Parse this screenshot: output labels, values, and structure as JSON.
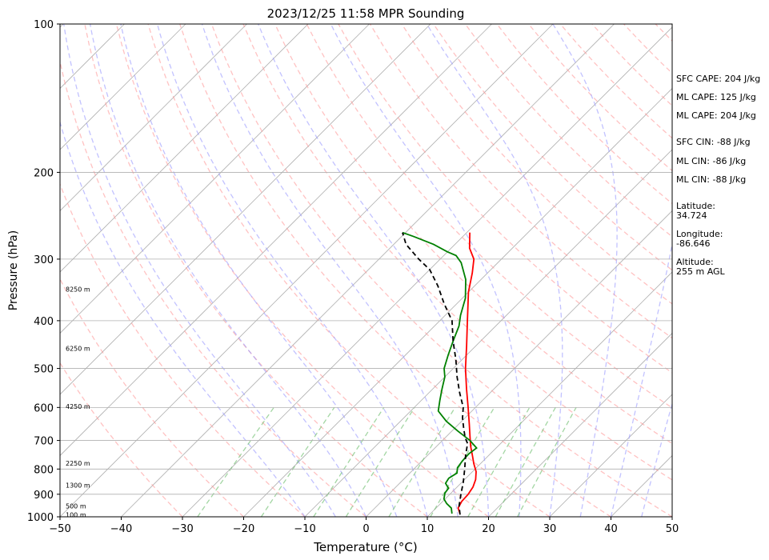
{
  "chart_data": {
    "type": "line",
    "title": "2023/12/25 11:58 MPR Sounding",
    "xlabel": "Temperature (°C)",
    "ylabel": "Pressure (hPa)",
    "xlim": [
      -50,
      50
    ],
    "ylim": [
      1000,
      100
    ],
    "y_scale": "log",
    "x_ticks": [
      "−50",
      "−40",
      "−30",
      "−20",
      "−10",
      "0",
      "10",
      "20",
      "30",
      "40",
      "50"
    ],
    "y_ticks": [
      {
        "p": 100,
        "label": "100"
      },
      {
        "p": 200,
        "label": "200"
      },
      {
        "p": 300,
        "label": "300"
      },
      {
        "p": 400,
        "label": "400"
      },
      {
        "p": 500,
        "label": "500"
      },
      {
        "p": 600,
        "label": "600"
      },
      {
        "p": 700,
        "label": "700"
      },
      {
        "p": 800,
        "label": "800"
      },
      {
        "p": 900,
        "label": "900"
      },
      {
        "p": 1000,
        "label": "1000"
      }
    ],
    "height_labels": [
      {
        "p": 345,
        "label": "8250 m"
      },
      {
        "p": 455,
        "label": "6250 m"
      },
      {
        "p": 597,
        "label": "4250 m"
      },
      {
        "p": 778,
        "label": "2250 m"
      },
      {
        "p": 862,
        "label": "1300 m"
      },
      {
        "p": 950,
        "label": "500 m"
      },
      {
        "p": 990,
        "label": "100 m"
      }
    ],
    "series": [
      {
        "name": "",
        "color": "#ff0000",
        "style": "solid",
        "points": [
          [
            14.8,
            985
          ],
          [
            13.6,
            960
          ],
          [
            13.1,
            930
          ],
          [
            13.0,
            900
          ],
          [
            12.6,
            870
          ],
          [
            11.8,
            840
          ],
          [
            10.6,
            810
          ],
          [
            8.9,
            780
          ],
          [
            7.3,
            750
          ],
          [
            5.6,
            720
          ],
          [
            4.0,
            690
          ],
          [
            1.8,
            650
          ],
          [
            -1.2,
            600
          ],
          [
            -4.5,
            550
          ],
          [
            -8.0,
            500
          ],
          [
            -11.5,
            450
          ],
          [
            -15.5,
            400
          ],
          [
            -20.0,
            350
          ],
          [
            -22.5,
            320
          ],
          [
            -24.5,
            300
          ],
          [
            -27.0,
            285
          ],
          [
            -29.5,
            265
          ]
        ]
      },
      {
        "name": "",
        "color": "#008000",
        "style": "solid",
        "points": [
          [
            13.5,
            985
          ],
          [
            12.5,
            960
          ],
          [
            11.0,
            940
          ],
          [
            9.8,
            920
          ],
          [
            9.0,
            895
          ],
          [
            8.8,
            875
          ],
          [
            7.5,
            855
          ],
          [
            7.2,
            835
          ],
          [
            7.7,
            815
          ],
          [
            6.9,
            795
          ],
          [
            6.6,
            770
          ],
          [
            6.5,
            745
          ],
          [
            6.8,
            725
          ],
          [
            4.5,
            700
          ],
          [
            1.0,
            670
          ],
          [
            -2.5,
            640
          ],
          [
            -5.5,
            610
          ],
          [
            -7.0,
            580
          ],
          [
            -8.5,
            550
          ],
          [
            -10.0,
            520
          ],
          [
            -11.5,
            500
          ],
          [
            -13.0,
            470
          ],
          [
            -14.5,
            440
          ],
          [
            -16.0,
            410
          ],
          [
            -17.5,
            390
          ],
          [
            -19.5,
            360
          ],
          [
            -22.5,
            330
          ],
          [
            -26.0,
            305
          ],
          [
            -28.0,
            295
          ],
          [
            -30.0,
            290
          ],
          [
            -33.5,
            280
          ],
          [
            -38.0,
            270
          ],
          [
            -40.5,
            265
          ]
        ]
      },
      {
        "name": "",
        "color": "#000000",
        "style": "dashed",
        "points": [
          [
            15.0,
            990
          ],
          [
            13.4,
            950
          ],
          [
            11.8,
            900
          ],
          [
            10.2,
            850
          ],
          [
            8.3,
            800
          ],
          [
            6.2,
            750
          ],
          [
            4.6,
            710
          ],
          [
            3.2,
            690
          ],
          [
            1.4,
            660
          ],
          [
            -0.4,
            630
          ],
          [
            -2.0,
            600
          ],
          [
            -5.0,
            560
          ],
          [
            -8.0,
            520
          ],
          [
            -11.0,
            480
          ],
          [
            -14.5,
            440
          ],
          [
            -18.0,
            400
          ],
          [
            -22.0,
            370
          ],
          [
            -26.0,
            340
          ],
          [
            -30.0,
            315
          ],
          [
            -33.5,
            300
          ],
          [
            -38.0,
            280
          ],
          [
            -40.5,
            265
          ]
        ]
      }
    ]
  },
  "side_panel": {
    "sfc_cape": "SFC CAPE: 204 J/kg",
    "ml_cape_1": "ML CAPE: 125 J/kg",
    "ml_cape_2": "ML CAPE: 204 J/kg",
    "sfc_cin": "SFC CIN: -88 J/kg",
    "ml_cin_1": "ML CIN: -86 J/kg",
    "ml_cin_2": "ML CIN: -88 J/kg",
    "latitude_label": "Latitude:",
    "latitude_value": "34.724",
    "longitude_label": "Longitude:",
    "longitude_value": "-86.646",
    "altitude_label": "Altitude:",
    "altitude_value": "255 m AGL"
  },
  "colors": {
    "isotherm": "#b0b0b0",
    "dry_adiabat": "#ff9999",
    "moist_adiabat": "#9999ff",
    "mixing_ratio": "#66bb66",
    "grid": "#b0b0b0"
  }
}
